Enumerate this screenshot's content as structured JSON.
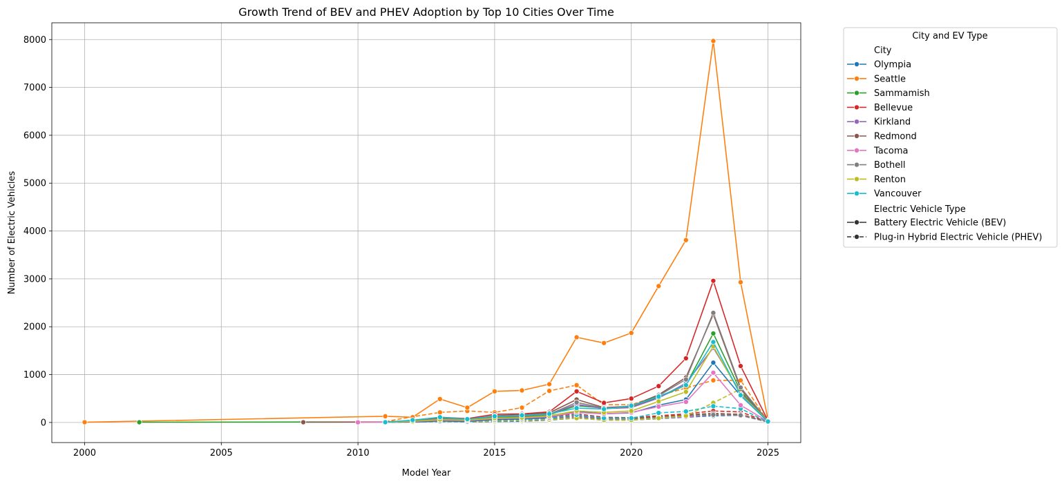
{
  "chart_data": {
    "type": "line",
    "title": "Growth Trend of BEV and PHEV Adoption by Top 10 Cities Over Time",
    "xlabel": "Model Year",
    "ylabel": "Number of Electric Vehicles",
    "xlim": [
      1998.8,
      2026.2
    ],
    "ylim": [
      -420,
      8350
    ],
    "xticks": [
      2000,
      2005,
      2010,
      2015,
      2020,
      2025
    ],
    "yticks": [
      0,
      1000,
      2000,
      3000,
      4000,
      5000,
      6000,
      7000,
      8000
    ],
    "grid": true,
    "legend": {
      "title": "City and EV Type",
      "placement": "outside-top-right",
      "city_header": "City",
      "type_header": "Electric Vehicle Type",
      "types": [
        {
          "label": "Battery Electric Vehicle (BEV)",
          "dash": "solid"
        },
        {
          "label": "Plug-in Hybrid Electric Vehicle (PHEV)",
          "dash": "dashed"
        }
      ]
    },
    "series": [
      {
        "name": "Olympia",
        "color": "#1f77b4",
        "type": "BEV",
        "dash": "solid",
        "x": [
          2011,
          2012,
          2013,
          2014,
          2015,
          2016,
          2017,
          2018,
          2019,
          2020,
          2021,
          2022,
          2023,
          2024,
          2025
        ],
        "y": [
          5,
          10,
          30,
          20,
          60,
          70,
          100,
          230,
          180,
          200,
          360,
          480,
          1250,
          560,
          20
        ]
      },
      {
        "name": "Olympia",
        "color": "#1f77b4",
        "type": "PHEV",
        "dash": "dashed",
        "x": [
          2011,
          2012,
          2013,
          2014,
          2015,
          2016,
          2017,
          2018,
          2019,
          2020,
          2021,
          2022,
          2023,
          2024,
          2025
        ],
        "y": [
          3,
          10,
          20,
          15,
          20,
          25,
          50,
          90,
          50,
          50,
          80,
          110,
          140,
          150,
          10
        ]
      },
      {
        "name": "Seattle",
        "color": "#ff7f0e",
        "type": "BEV",
        "dash": "solid",
        "x": [
          2000,
          2011,
          2012,
          2013,
          2014,
          2015,
          2016,
          2017,
          2018,
          2019,
          2020,
          2021,
          2022,
          2023,
          2024,
          2025
        ],
        "y": [
          5,
          130,
          110,
          490,
          310,
          650,
          670,
          800,
          1780,
          1660,
          1870,
          2850,
          3810,
          7970,
          2930,
          60
        ]
      },
      {
        "name": "Seattle",
        "color": "#ff7f0e",
        "type": "PHEV",
        "dash": "dashed",
        "x": [
          2011,
          2012,
          2013,
          2014,
          2015,
          2016,
          2017,
          2018,
          2019,
          2020,
          2021,
          2022,
          2023,
          2024,
          2025
        ],
        "y": [
          20,
          120,
          210,
          240,
          210,
          310,
          660,
          780,
          370,
          370,
          560,
          720,
          880,
          880,
          20
        ]
      },
      {
        "name": "Sammamish",
        "color": "#2ca02c",
        "type": "BEV",
        "dash": "solid",
        "x": [
          2002,
          2008,
          2011,
          2012,
          2013,
          2014,
          2015,
          2016,
          2017,
          2018,
          2019,
          2020,
          2021,
          2022,
          2023,
          2024,
          2025
        ],
        "y": [
          5,
          10,
          10,
          40,
          100,
          70,
          100,
          120,
          160,
          350,
          300,
          330,
          520,
          780,
          1860,
          650,
          30
        ]
      },
      {
        "name": "Sammamish",
        "color": "#2ca02c",
        "type": "PHEV",
        "dash": "dashed",
        "x": [
          2011,
          2012,
          2013,
          2014,
          2015,
          2016,
          2017,
          2018,
          2019,
          2020,
          2021,
          2022,
          2023,
          2024,
          2025
        ],
        "y": [
          3,
          15,
          30,
          25,
          40,
          60,
          90,
          140,
          80,
          100,
          120,
          150,
          180,
          170,
          10
        ]
      },
      {
        "name": "Bellevue",
        "color": "#d62728",
        "type": "BEV",
        "dash": "solid",
        "x": [
          2011,
          2012,
          2013,
          2014,
          2015,
          2016,
          2017,
          2018,
          2019,
          2020,
          2021,
          2022,
          2023,
          2024,
          2025
        ],
        "y": [
          10,
          40,
          110,
          80,
          170,
          180,
          220,
          650,
          410,
          500,
          760,
          1340,
          2960,
          1180,
          40
        ]
      },
      {
        "name": "Bellevue",
        "color": "#d62728",
        "type": "PHEV",
        "dash": "dashed",
        "x": [
          2011,
          2012,
          2013,
          2014,
          2015,
          2016,
          2017,
          2018,
          2019,
          2020,
          2021,
          2022,
          2023,
          2024,
          2025
        ],
        "y": [
          5,
          20,
          40,
          35,
          60,
          80,
          110,
          180,
          110,
          100,
          140,
          180,
          240,
          220,
          10
        ]
      },
      {
        "name": "Kirkland",
        "color": "#9467bd",
        "type": "BEV",
        "dash": "solid",
        "x": [
          2011,
          2012,
          2013,
          2014,
          2015,
          2016,
          2017,
          2018,
          2019,
          2020,
          2021,
          2022,
          2023,
          2024,
          2025
        ],
        "y": [
          5,
          30,
          80,
          60,
          120,
          130,
          170,
          380,
          290,
          310,
          510,
          820,
          1560,
          620,
          30
        ]
      },
      {
        "name": "Kirkland",
        "color": "#9467bd",
        "type": "PHEV",
        "dash": "dashed",
        "x": [
          2011,
          2012,
          2013,
          2014,
          2015,
          2016,
          2017,
          2018,
          2019,
          2020,
          2021,
          2022,
          2023,
          2024,
          2025
        ],
        "y": [
          3,
          15,
          30,
          25,
          40,
          60,
          80,
          130,
          80,
          70,
          100,
          140,
          160,
          150,
          10
        ]
      },
      {
        "name": "Redmond",
        "color": "#8c564b",
        "type": "BEV",
        "dash": "solid",
        "x": [
          2008,
          2011,
          2012,
          2013,
          2014,
          2015,
          2016,
          2017,
          2018,
          2019,
          2020,
          2021,
          2022,
          2023,
          2024,
          2025
        ],
        "y": [
          5,
          10,
          40,
          90,
          60,
          140,
          160,
          200,
          480,
          310,
          340,
          580,
          940,
          2260,
          700,
          40
        ]
      },
      {
        "name": "Redmond",
        "color": "#8c564b",
        "type": "PHEV",
        "dash": "dashed",
        "x": [
          2011,
          2012,
          2013,
          2014,
          2015,
          2016,
          2017,
          2018,
          2019,
          2020,
          2021,
          2022,
          2023,
          2024,
          2025
        ],
        "y": [
          3,
          15,
          35,
          30,
          45,
          60,
          90,
          150,
          90,
          90,
          110,
          160,
          190,
          170,
          10
        ]
      },
      {
        "name": "Tacoma",
        "color": "#e377c2",
        "type": "BEV",
        "dash": "solid",
        "x": [
          2010,
          2011,
          2012,
          2013,
          2014,
          2015,
          2016,
          2017,
          2018,
          2019,
          2020,
          2021,
          2022,
          2023,
          2024,
          2025
        ],
        "y": [
          3,
          5,
          20,
          50,
          40,
          80,
          90,
          120,
          210,
          180,
          210,
          330,
          430,
          1040,
          360,
          20
        ]
      },
      {
        "name": "Tacoma",
        "color": "#e377c2",
        "type": "PHEV",
        "dash": "dashed",
        "x": [
          2011,
          2012,
          2013,
          2014,
          2015,
          2016,
          2017,
          2018,
          2019,
          2020,
          2021,
          2022,
          2023,
          2024,
          2025
        ],
        "y": [
          3,
          10,
          20,
          20,
          30,
          40,
          60,
          120,
          60,
          60,
          90,
          120,
          160,
          150,
          10
        ]
      },
      {
        "name": "Bothell",
        "color": "#7f7f7f",
        "type": "BEV",
        "dash": "solid",
        "x": [
          2011,
          2012,
          2013,
          2014,
          2015,
          2016,
          2017,
          2018,
          2019,
          2020,
          2021,
          2022,
          2023,
          2024,
          2025
        ],
        "y": [
          5,
          30,
          80,
          60,
          120,
          130,
          170,
          420,
          300,
          320,
          560,
          900,
          2290,
          730,
          30
        ]
      },
      {
        "name": "Bothell",
        "color": "#7f7f7f",
        "type": "PHEV",
        "dash": "dashed",
        "x": [
          2011,
          2012,
          2013,
          2014,
          2015,
          2016,
          2017,
          2018,
          2019,
          2020,
          2021,
          2022,
          2023,
          2024,
          2025
        ],
        "y": [
          3,
          15,
          30,
          25,
          40,
          50,
          70,
          110,
          70,
          70,
          100,
          140,
          160,
          150,
          10
        ]
      },
      {
        "name": "Renton",
        "color": "#bcbd22",
        "type": "BEV",
        "dash": "solid",
        "x": [
          2011,
          2012,
          2013,
          2014,
          2015,
          2016,
          2017,
          2018,
          2019,
          2020,
          2021,
          2022,
          2023,
          2024,
          2025
        ],
        "y": [
          5,
          25,
          60,
          50,
          90,
          100,
          140,
          240,
          210,
          240,
          440,
          640,
          1590,
          590,
          30
        ]
      },
      {
        "name": "Renton",
        "color": "#bcbd22",
        "type": "PHEV",
        "dash": "dashed",
        "x": [
          2011,
          2012,
          2013,
          2014,
          2015,
          2016,
          2017,
          2018,
          2019,
          2020,
          2021,
          2022,
          2023,
          2024,
          2025
        ],
        "y": [
          3,
          10,
          20,
          20,
          30,
          40,
          60,
          90,
          50,
          50,
          90,
          140,
          410,
          700,
          10
        ]
      },
      {
        "name": "Vancouver",
        "color": "#17becf",
        "type": "BEV",
        "dash": "solid",
        "x": [
          2011,
          2012,
          2013,
          2014,
          2015,
          2016,
          2017,
          2018,
          2019,
          2020,
          2021,
          2022,
          2023,
          2024,
          2025
        ],
        "y": [
          5,
          50,
          110,
          70,
          130,
          150,
          180,
          300,
          280,
          350,
          540,
          780,
          1680,
          570,
          20
        ]
      },
      {
        "name": "Vancouver",
        "color": "#17becf",
        "type": "PHEV",
        "dash": "dashed",
        "x": [
          2011,
          2012,
          2013,
          2014,
          2015,
          2016,
          2017,
          2018,
          2019,
          2020,
          2021,
          2022,
          2023,
          2024,
          2025
        ],
        "y": [
          3,
          40,
          60,
          60,
          50,
          60,
          90,
          160,
          90,
          90,
          200,
          230,
          340,
          290,
          10
        ]
      }
    ]
  }
}
